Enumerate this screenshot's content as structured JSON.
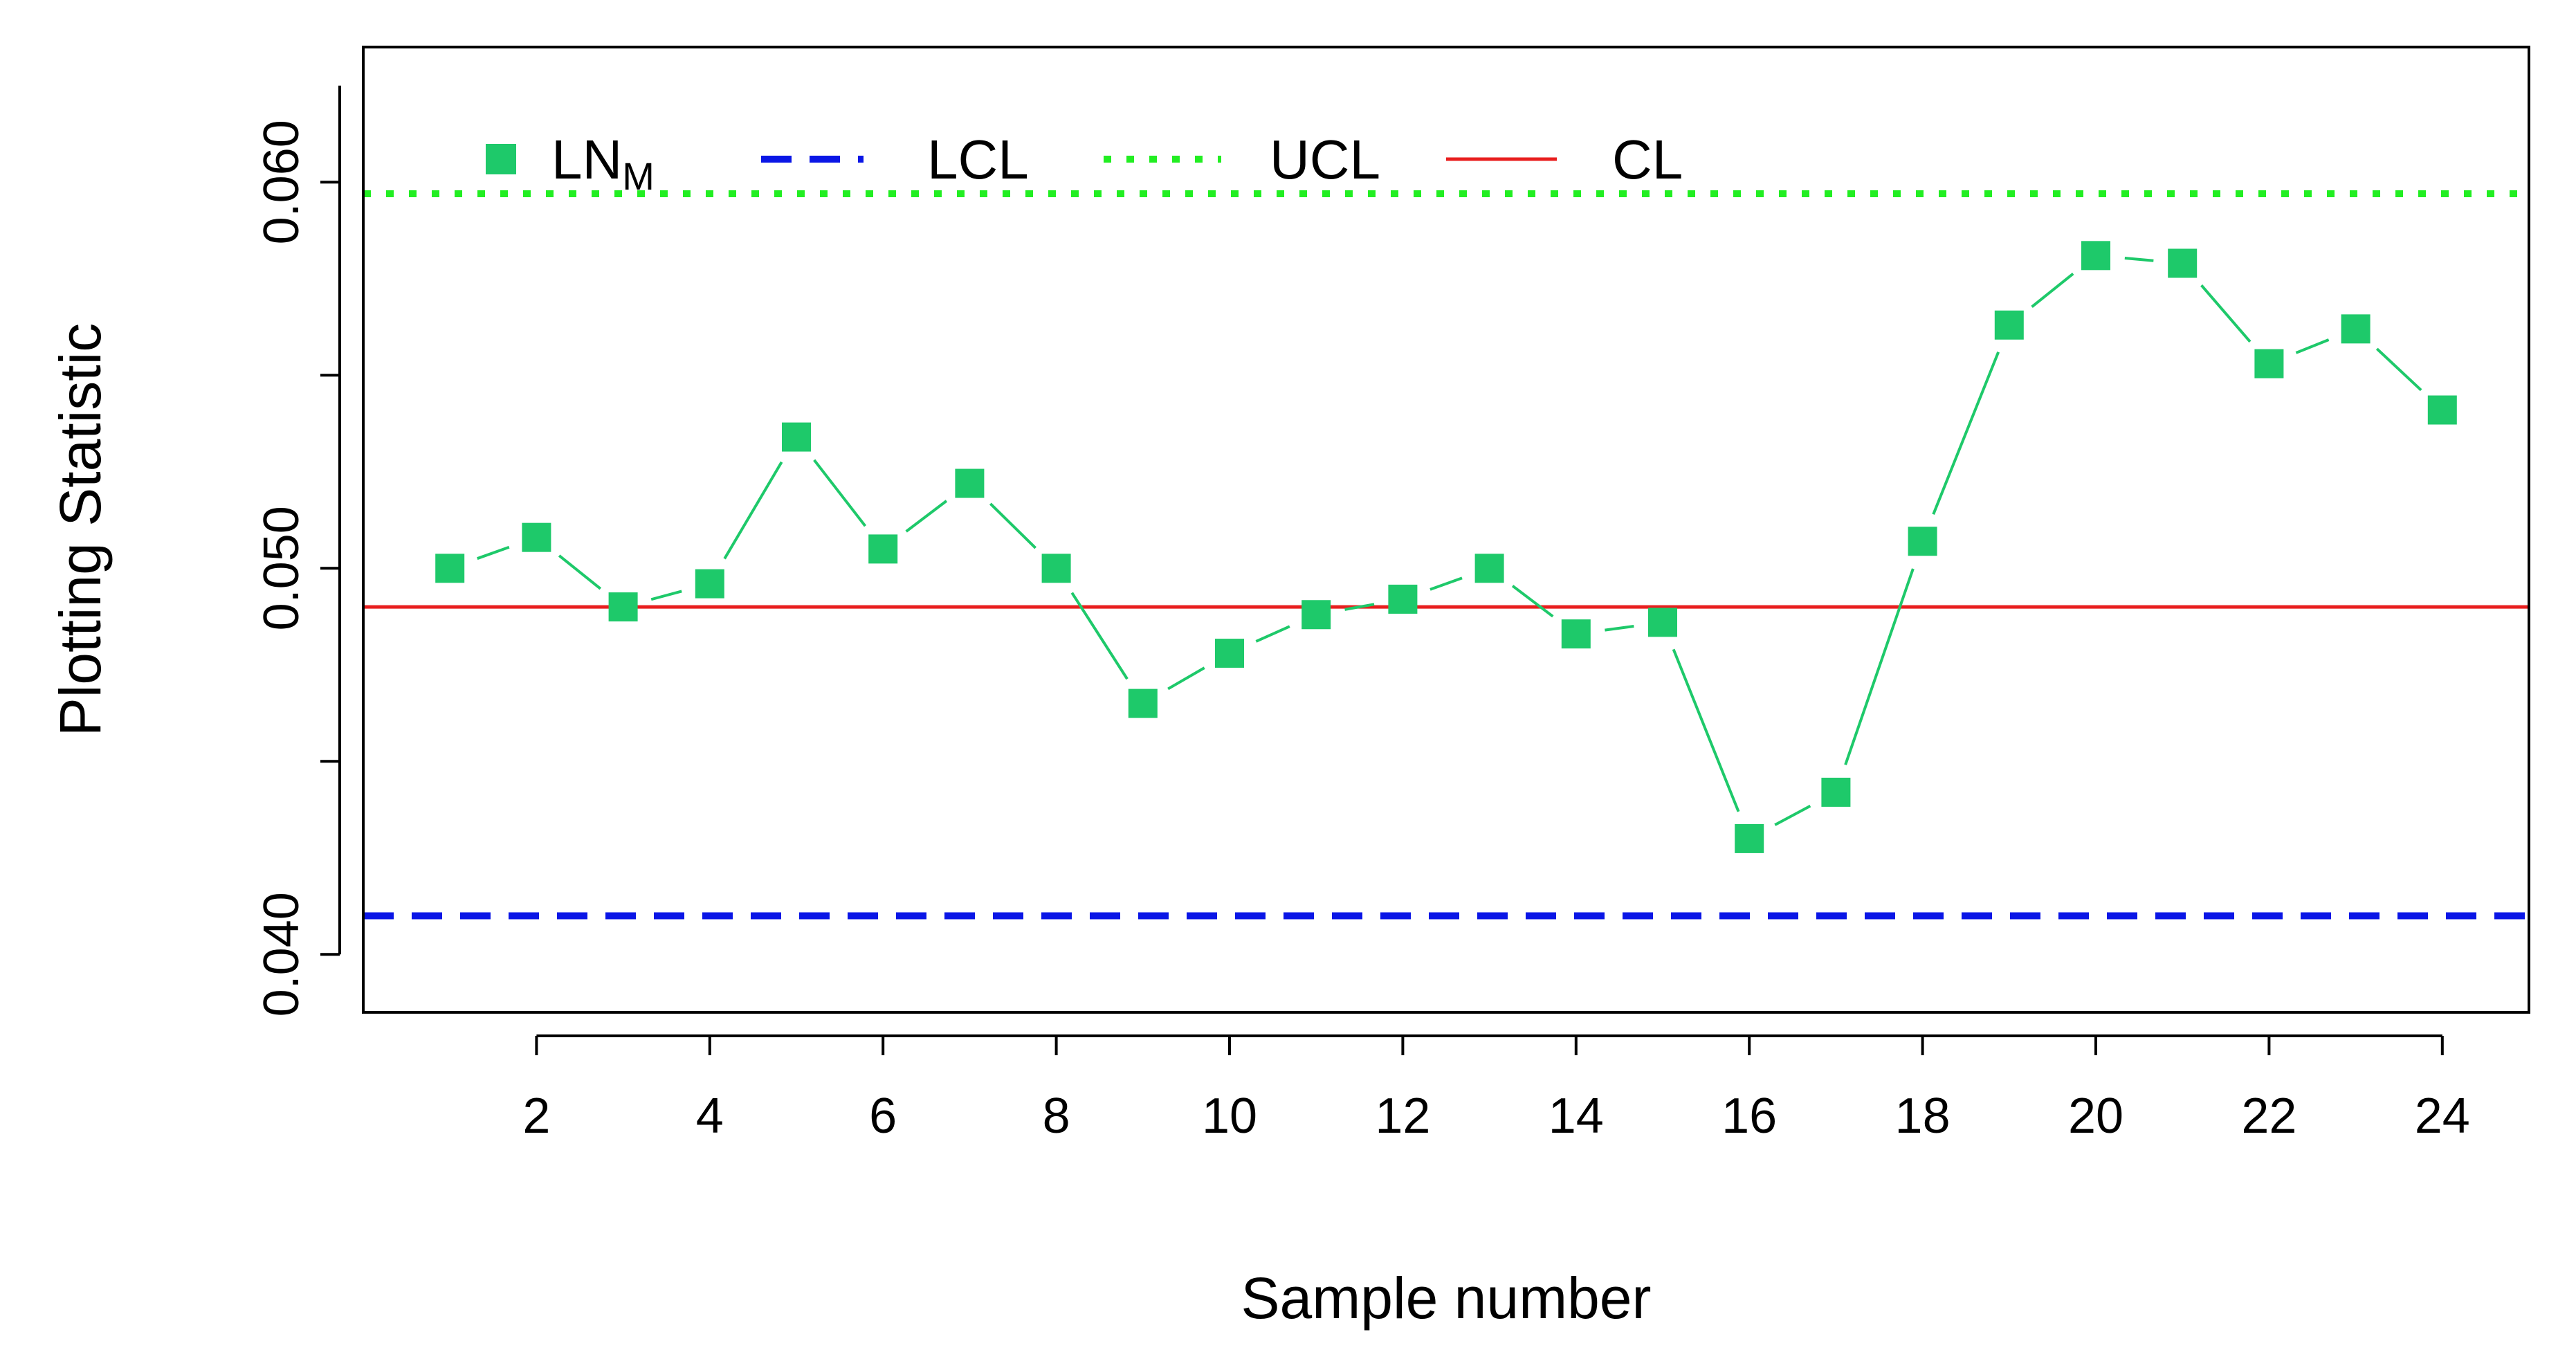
{
  "chart_data": {
    "type": "line",
    "title": "",
    "xlabel": "Sample number",
    "ylabel": "Plotting Statistic",
    "x": [
      1,
      2,
      3,
      4,
      5,
      6,
      7,
      8,
      9,
      10,
      11,
      12,
      13,
      14,
      15,
      16,
      17,
      18,
      19,
      20,
      21,
      22,
      23,
      24
    ],
    "xlim": [
      0,
      25
    ],
    "ylim": [
      0.0385,
      0.0635
    ],
    "x_ticks": [
      2,
      4,
      6,
      8,
      10,
      12,
      14,
      16,
      18,
      20,
      22,
      24
    ],
    "x_tick_labels": [
      "2",
      "4",
      "6",
      "8",
      "10",
      "12",
      "14",
      "16",
      "18",
      "20",
      "22",
      "24"
    ],
    "y_ticks": [
      0.04,
      0.045,
      0.05,
      0.055,
      0.06
    ],
    "y_tick_labels": [
      "0.040",
      "",
      "0.050",
      "",
      "0.060"
    ],
    "series": [
      {
        "name": "LNM",
        "legend_main": "LN",
        "legend_sub": "M",
        "color": "#1ec96a",
        "style": "points-and-lines",
        "marker": "square",
        "values": [
          0.05,
          0.0508,
          0.049,
          0.0496,
          0.0534,
          0.0505,
          0.0522,
          0.05,
          0.0465,
          0.0478,
          0.0488,
          0.0492,
          0.05,
          0.0483,
          0.0486,
          0.043,
          0.0442,
          0.0507,
          0.0563,
          0.0581,
          0.0579,
          0.0553,
          0.0562,
          0.0541
        ]
      }
    ],
    "reference_lines": [
      {
        "name": "LCL",
        "value": 0.041,
        "color": "#0a16e6",
        "style": "dashed"
      },
      {
        "name": "UCL",
        "value": 0.0597,
        "color": "#22ee22",
        "style": "dotted"
      },
      {
        "name": "CL",
        "value": 0.049,
        "color": "#e81e1e",
        "style": "solid"
      }
    ],
    "legend": {
      "position": "top-left",
      "entries": [
        "LNM",
        "LCL",
        "UCL",
        "CL"
      ]
    }
  }
}
